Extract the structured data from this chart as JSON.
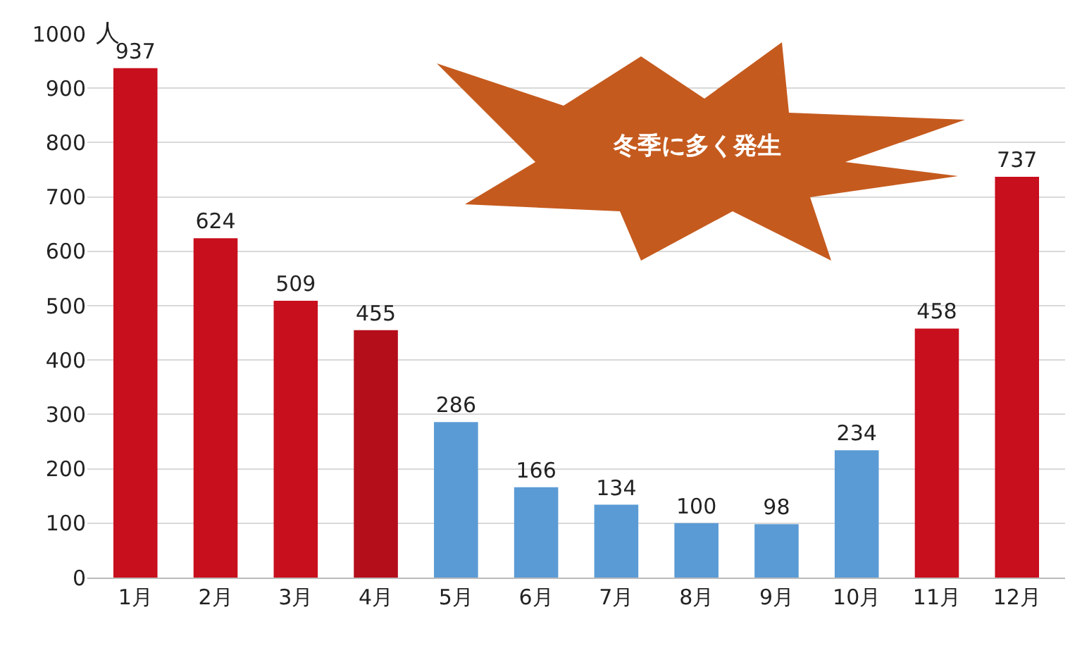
{
  "chart_data": {
    "type": "bar",
    "ylabel": "人",
    "categories": [
      "1月",
      "2月",
      "3月",
      "4月",
      "5月",
      "6月",
      "7月",
      "8月",
      "9月",
      "10月",
      "11月",
      "12月"
    ],
    "values": [
      937,
      624,
      509,
      455,
      286,
      166,
      134,
      100,
      98,
      234,
      458,
      737
    ],
    "colors": [
      "#c80f1e",
      "#c80f1e",
      "#c80f1e",
      "#b50e1b",
      "#5b9bd5",
      "#5b9bd5",
      "#5b9bd5",
      "#5b9bd5",
      "#5b9bd5",
      "#5b9bd5",
      "#c80f1e",
      "#c80f1e"
    ],
    "ylim": [
      0,
      1000
    ],
    "yticks": [
      0,
      100,
      200,
      300,
      400,
      500,
      600,
      700,
      800,
      900,
      1000
    ],
    "grid": "y",
    "data_labels": true,
    "legend": false,
    "annotations": [
      "冬季に多く発生"
    ]
  }
}
